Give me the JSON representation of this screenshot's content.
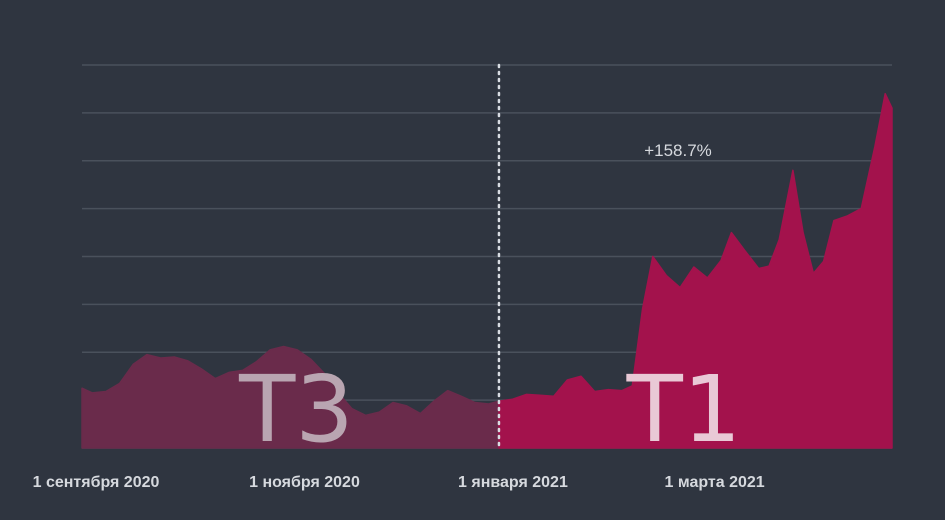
{
  "chart_data": {
    "type": "area",
    "title": "",
    "xlabel": "",
    "ylabel": "",
    "x_ticks": [
      {
        "date": "2020-09-01",
        "label": "1 сентября 2020"
      },
      {
        "date": "2020-11-01",
        "label": "1 ноября 2020"
      },
      {
        "date": "2021-01-01",
        "label": "1 января 2021"
      },
      {
        "date": "2021-03-01",
        "label": "1 марта 2021"
      }
    ],
    "xlim": [
      "2020-09-01",
      "2021-04-26"
    ],
    "ylim": [
      0,
      8
    ],
    "grid": true,
    "divider_date": "2021-01-01",
    "annotation": "+158.7%",
    "series": [
      {
        "label": "Т3",
        "color": "#6a2b4b",
        "label_color": "#b9a5b1",
        "points": [
          [
            "2020-09-01",
            1.25
          ],
          [
            "2020-09-04",
            1.15
          ],
          [
            "2020-09-08",
            1.18
          ],
          [
            "2020-09-12",
            1.35
          ],
          [
            "2020-09-16",
            1.75
          ],
          [
            "2020-09-20",
            1.95
          ],
          [
            "2020-09-24",
            1.88
          ],
          [
            "2020-09-28",
            1.9
          ],
          [
            "2020-10-02",
            1.82
          ],
          [
            "2020-10-06",
            1.65
          ],
          [
            "2020-10-10",
            1.45
          ],
          [
            "2020-10-14",
            1.58
          ],
          [
            "2020-10-18",
            1.62
          ],
          [
            "2020-10-22",
            1.8
          ],
          [
            "2020-10-26",
            2.05
          ],
          [
            "2020-10-30",
            2.12
          ],
          [
            "2020-11-03",
            2.05
          ],
          [
            "2020-11-07",
            1.85
          ],
          [
            "2020-11-11",
            1.55
          ],
          [
            "2020-11-15",
            1.15
          ],
          [
            "2020-11-19",
            0.82
          ],
          [
            "2020-11-23",
            0.68
          ],
          [
            "2020-11-27",
            0.75
          ],
          [
            "2020-12-01",
            0.95
          ],
          [
            "2020-12-05",
            0.88
          ],
          [
            "2020-12-09",
            0.72
          ],
          [
            "2020-12-13",
            0.98
          ],
          [
            "2020-12-17",
            1.2
          ],
          [
            "2020-12-21",
            1.08
          ],
          [
            "2020-12-25",
            0.95
          ],
          [
            "2020-12-29",
            0.92
          ],
          [
            "2021-01-01",
            0.98
          ]
        ]
      },
      {
        "label": "Т1",
        "color": "#a3124c",
        "label_color": "#e9c9d6",
        "points": [
          [
            "2021-01-01",
            0.98
          ],
          [
            "2021-01-05",
            1.02
          ],
          [
            "2021-01-09",
            1.12
          ],
          [
            "2021-01-13",
            1.1
          ],
          [
            "2021-01-17",
            1.08
          ],
          [
            "2021-01-21",
            1.42
          ],
          [
            "2021-01-25",
            1.5
          ],
          [
            "2021-01-29",
            1.18
          ],
          [
            "2021-02-02",
            1.22
          ],
          [
            "2021-02-06",
            1.2
          ],
          [
            "2021-02-09",
            1.3
          ],
          [
            "2021-02-12",
            2.9
          ],
          [
            "2021-02-15",
            4.0
          ],
          [
            "2021-02-19",
            3.6
          ],
          [
            "2021-02-23",
            3.35
          ],
          [
            "2021-02-27",
            3.78
          ],
          [
            "2021-03-03",
            3.55
          ],
          [
            "2021-03-07",
            3.92
          ],
          [
            "2021-03-10",
            4.5
          ],
          [
            "2021-03-14",
            4.12
          ],
          [
            "2021-03-18",
            3.75
          ],
          [
            "2021-03-21",
            3.8
          ],
          [
            "2021-03-24",
            4.35
          ],
          [
            "2021-03-28",
            5.8
          ],
          [
            "2021-03-31",
            4.5
          ],
          [
            "2021-04-03",
            3.65
          ],
          [
            "2021-04-06",
            3.9
          ],
          [
            "2021-04-09",
            4.75
          ],
          [
            "2021-04-13",
            4.85
          ],
          [
            "2021-04-17",
            5.0
          ],
          [
            "2021-04-21",
            6.3
          ],
          [
            "2021-04-24",
            7.4
          ],
          [
            "2021-04-26",
            7.1
          ]
        ]
      }
    ]
  }
}
